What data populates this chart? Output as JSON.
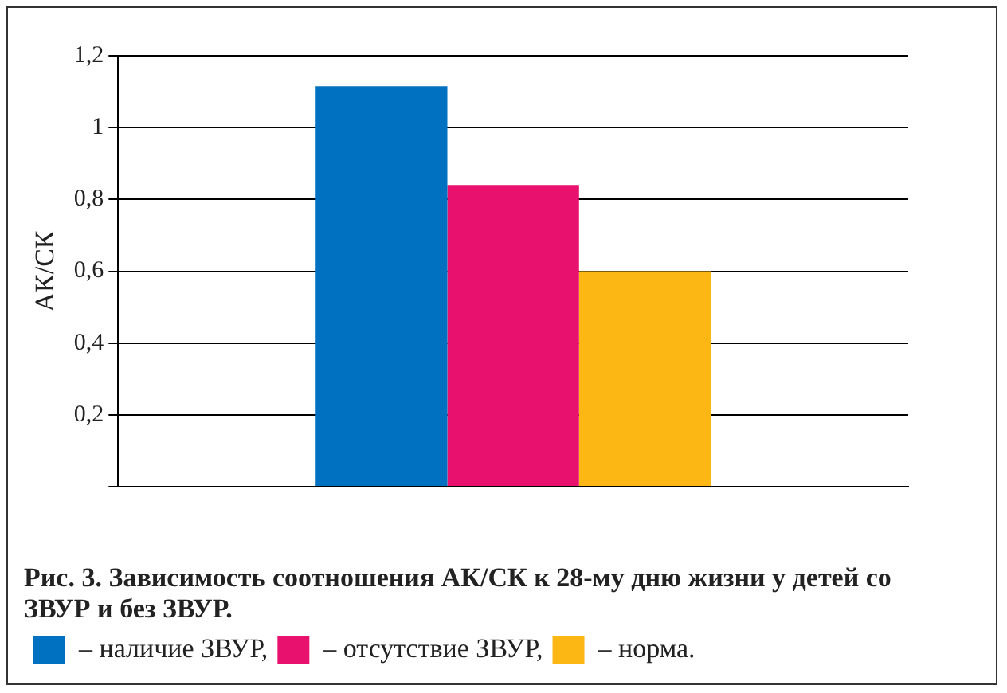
{
  "chart_data": {
    "type": "bar",
    "title": "Рис. 3. Зависимость соотношения АК/СК к 28-му дню жизни у детей со ЗВУР и без ЗВУР.",
    "ylabel": "АК/СК",
    "categories": [
      null
    ],
    "series": [
      {
        "name": "– наличие ЗВУР,",
        "color": "#0070c0",
        "values": [
          1.115
        ]
      },
      {
        "name": "– отсутствие ЗВУР,",
        "color": "#e8116e",
        "values": [
          0.84
        ]
      },
      {
        "name": "– норма.",
        "color": "#fdb714",
        "values": [
          0.6
        ]
      }
    ],
    "ylim": [
      0,
      1.2
    ],
    "yticks": [
      {
        "value": 0,
        "label": null
      },
      {
        "value": 0.2,
        "label": "0,2"
      },
      {
        "value": 0.4,
        "label": "0,4"
      },
      {
        "value": 0.6,
        "label": "0,6"
      },
      {
        "value": 0.8,
        "label": "0,8"
      },
      1,
      {
        "value": 1.2,
        "label": "1,2"
      }
    ],
    "grid": "y",
    "legend": "bottom"
  }
}
